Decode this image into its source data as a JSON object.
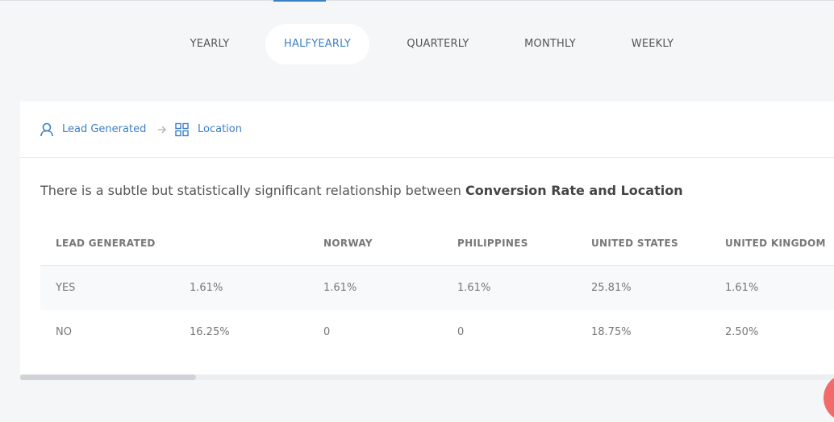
{
  "period_tabs": [
    {
      "label": "YEARLY",
      "active": false
    },
    {
      "label": "HALFYEARLY",
      "active": true
    },
    {
      "label": "QUARTERLY",
      "active": false
    },
    {
      "label": "MONTHLY",
      "active": false
    },
    {
      "label": "WEEKLY",
      "active": false
    }
  ],
  "breadcrumb": {
    "first": {
      "label": "Lead Generated",
      "icon": "user-icon"
    },
    "separator_icon": "arrow-right-icon",
    "second": {
      "label": "Location",
      "icon": "grid-icon"
    }
  },
  "insight": {
    "prefix": "There is a subtle but statistically significant relationship between ",
    "emphasis": "Conversion Rate and Location"
  },
  "table": {
    "headers": [
      "LEAD GENERATED",
      "",
      "NORWAY",
      "PHILIPPINES",
      "UNITED STATES",
      "UNITED KINGDOM"
    ],
    "rows": [
      [
        "YES",
        "1.61%",
        "1.61%",
        "1.61%",
        "25.81%",
        "1.61%"
      ],
      [
        "NO",
        "16.25%",
        "0",
        "0",
        "18.75%",
        "2.50%"
      ]
    ]
  },
  "colors": {
    "accent": "#3b7fc4",
    "background": "#f5f6f8",
    "fab": "#f26b6b"
  }
}
